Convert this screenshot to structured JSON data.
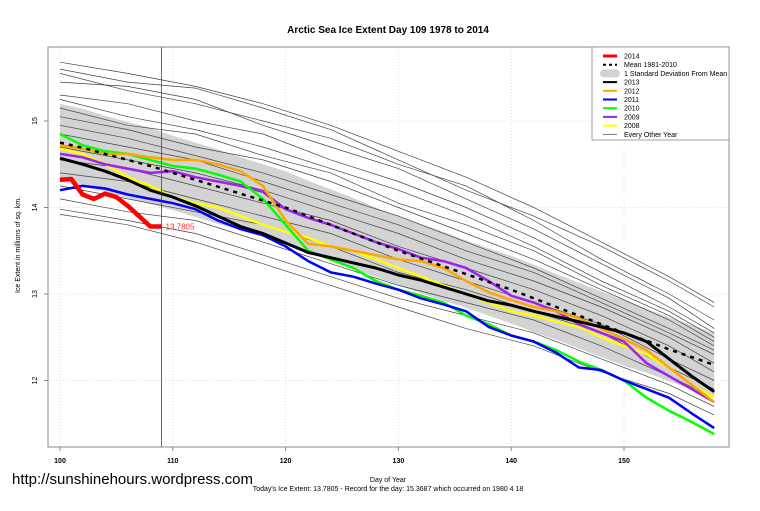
{
  "watermark": "http://sunshinehours.wordpress.com",
  "chart_data": {
    "type": "line",
    "title": "Arctic Sea Ice Extent Day 109 1978 to 2014",
    "xlabel": "Day of Year",
    "ylabel": "Ice Extent in millions of sq. km.",
    "footer": "Today's Ice Extent: 13.7805  - Record for the day: 15.3687 which occurred on 1980 4 18",
    "xlim": [
      99,
      159
    ],
    "ylim": [
      11.22,
      15.85
    ],
    "xticks": [
      100,
      110,
      120,
      130,
      140,
      150
    ],
    "yticks": [
      12,
      13,
      14,
      15
    ],
    "grid": true,
    "legend_position": "top-right",
    "current_day": 109,
    "annotation": {
      "day": 109,
      "value": 13.7805,
      "text": "13.7805",
      "color": "#ff0000"
    },
    "legend": [
      {
        "label": "2014",
        "style": "thick",
        "color": "#ff0000"
      },
      {
        "label": "Mean 1981-2010",
        "style": "dotted",
        "color": "#000000"
      },
      {
        "label": "1 Standard Deviation From Mean",
        "style": "band",
        "color": "#d3d3d3"
      },
      {
        "label": "2013",
        "style": "line",
        "color": "#000000"
      },
      {
        "label": "2012",
        "style": "line",
        "color": "#ffa500"
      },
      {
        "label": "2011",
        "style": "line",
        "color": "#0000ff"
      },
      {
        "label": "2010",
        "style": "line",
        "color": "#00ff00"
      },
      {
        "label": "2009",
        "style": "line",
        "color": "#a020f0"
      },
      {
        "label": "2008",
        "style": "line",
        "color": "#ffff00"
      },
      {
        "label": "Every Other Year",
        "style": "thin",
        "color": "#555555"
      }
    ],
    "days_2": [
      100,
      102,
      104,
      106,
      108,
      110,
      112,
      114,
      116,
      118,
      120,
      122,
      124,
      126,
      128,
      130,
      132,
      134,
      136,
      138,
      140,
      142,
      144,
      146,
      148,
      150,
      152,
      154,
      156,
      158
    ],
    "mean": [
      14.75,
      14.69,
      14.62,
      14.55,
      14.48,
      14.4,
      14.32,
      14.24,
      14.16,
      14.08,
      14.0,
      13.9,
      13.8,
      13.7,
      13.6,
      13.5,
      13.41,
      13.32,
      13.23,
      13.14,
      13.05,
      12.95,
      12.85,
      12.75,
      12.65,
      12.55,
      12.46,
      12.36,
      12.27,
      12.18
    ],
    "sd": [
      0.45,
      0.45,
      0.44,
      0.44,
      0.44,
      0.43,
      0.43,
      0.43,
      0.42,
      0.42,
      0.42,
      0.41,
      0.41,
      0.41,
      0.4,
      0.4,
      0.4,
      0.4,
      0.39,
      0.39,
      0.39,
      0.39,
      0.38,
      0.38,
      0.38,
      0.38,
      0.37,
      0.37,
      0.37,
      0.37
    ],
    "series": [
      {
        "name": "2013",
        "color": "#000000",
        "values": [
          14.57,
          14.5,
          14.42,
          14.32,
          14.2,
          14.12,
          14.02,
          13.9,
          13.78,
          13.7,
          13.59,
          13.48,
          13.42,
          13.36,
          13.3,
          13.22,
          13.16,
          13.08,
          13.0,
          12.92,
          12.87,
          12.8,
          12.74,
          12.68,
          12.62,
          12.55,
          12.45,
          12.25,
          12.05,
          11.87
        ]
      },
      {
        "name": "2012",
        "color": "#ffa500",
        "values": [
          14.72,
          14.68,
          14.62,
          14.62,
          14.58,
          14.55,
          14.55,
          14.5,
          14.42,
          14.25,
          13.85,
          13.58,
          13.55,
          13.5,
          13.45,
          13.4,
          13.38,
          13.3,
          13.15,
          13.02,
          12.93,
          12.85,
          12.8,
          12.72,
          12.6,
          12.48,
          12.35,
          12.15,
          11.95,
          11.75
        ]
      },
      {
        "name": "2011",
        "color": "#0000ff",
        "values": [
          14.2,
          14.25,
          14.22,
          14.15,
          14.1,
          14.05,
          13.98,
          13.85,
          13.75,
          13.68,
          13.55,
          13.38,
          13.25,
          13.2,
          13.12,
          13.05,
          12.95,
          12.88,
          12.8,
          12.62,
          12.52,
          12.45,
          12.32,
          12.15,
          12.12,
          12.0,
          11.9,
          11.8,
          11.62,
          11.45
        ]
      },
      {
        "name": "2010",
        "color": "#00ff00",
        "values": [
          14.85,
          14.72,
          14.65,
          14.62,
          14.55,
          14.48,
          14.45,
          14.38,
          14.3,
          14.1,
          13.8,
          13.5,
          13.4,
          13.3,
          13.15,
          13.05,
          12.98,
          12.9,
          12.75,
          12.65,
          12.52,
          12.45,
          12.35,
          12.22,
          12.12,
          12.0,
          11.8,
          11.65,
          11.52,
          11.38
        ]
      },
      {
        "name": "2009",
        "color": "#a020f0",
        "values": [
          14.62,
          14.58,
          14.5,
          14.45,
          14.4,
          14.42,
          14.35,
          14.3,
          14.25,
          14.18,
          13.98,
          13.88,
          13.8,
          13.7,
          13.6,
          13.52,
          13.42,
          13.38,
          13.3,
          13.15,
          12.98,
          12.9,
          12.8,
          12.65,
          12.55,
          12.45,
          12.2,
          12.05,
          11.9,
          11.75
        ]
      },
      {
        "name": "2008",
        "color": "#ffff00",
        "values": [
          14.68,
          14.62,
          14.5,
          14.35,
          14.25,
          14.12,
          14.05,
          14.0,
          13.9,
          13.8,
          13.72,
          13.65,
          13.55,
          13.5,
          13.4,
          13.3,
          13.2,
          13.1,
          13.0,
          12.9,
          12.8,
          12.75,
          12.68,
          12.62,
          12.5,
          12.4,
          12.3,
          12.15,
          11.95,
          11.8
        ]
      }
    ],
    "current_year": {
      "name": "2014",
      "color": "#ff0000",
      "days": [
        100,
        101,
        102,
        103,
        104,
        105,
        106,
        107,
        108,
        109
      ],
      "values": [
        14.32,
        14.33,
        14.15,
        14.1,
        14.16,
        14.12,
        14.02,
        13.9,
        13.78,
        13.7805
      ]
    },
    "other_years_days": [
      100,
      106,
      112,
      118,
      124,
      130,
      136,
      142,
      148,
      154,
      158
    ],
    "other_years": [
      [
        15.68,
        15.55,
        15.4,
        15.2,
        14.95,
        14.65,
        14.35,
        14.0,
        13.6,
        13.2,
        12.9
      ],
      [
        15.6,
        15.45,
        15.38,
        15.15,
        14.9,
        14.55,
        14.2,
        13.9,
        13.55,
        13.15,
        12.85
      ],
      [
        15.55,
        15.35,
        15.2,
        15.0,
        14.8,
        14.5,
        14.25,
        13.85,
        13.4,
        13.0,
        12.7
      ],
      [
        15.45,
        15.4,
        15.25,
        14.95,
        14.7,
        14.45,
        14.1,
        13.75,
        13.35,
        12.95,
        12.6
      ],
      [
        15.3,
        15.2,
        15.0,
        14.85,
        14.55,
        14.3,
        14.0,
        13.65,
        13.25,
        12.85,
        12.55
      ],
      [
        15.25,
        15.05,
        14.9,
        14.7,
        14.45,
        14.2,
        13.9,
        13.55,
        13.15,
        12.8,
        12.5
      ],
      [
        15.15,
        14.95,
        14.85,
        14.6,
        14.4,
        14.05,
        13.8,
        13.5,
        13.1,
        12.75,
        12.45
      ],
      [
        15.05,
        14.9,
        14.7,
        14.55,
        14.3,
        14.0,
        13.7,
        13.4,
        13.05,
        12.7,
        12.4
      ],
      [
        14.95,
        14.8,
        14.6,
        14.4,
        14.15,
        13.9,
        13.6,
        13.3,
        12.95,
        12.6,
        12.35
      ],
      [
        14.85,
        14.7,
        14.55,
        14.3,
        14.05,
        13.8,
        13.5,
        13.25,
        12.9,
        12.55,
        12.3
      ],
      [
        14.7,
        14.55,
        14.4,
        14.2,
        13.95,
        13.7,
        13.4,
        13.15,
        12.85,
        12.5,
        12.2
      ],
      [
        14.55,
        14.45,
        14.25,
        14.05,
        13.85,
        13.55,
        13.3,
        13.05,
        12.75,
        12.4,
        12.1
      ],
      [
        14.4,
        14.3,
        14.1,
        13.9,
        13.7,
        13.4,
        13.15,
        12.9,
        12.65,
        12.25,
        12.0
      ],
      [
        14.25,
        14.1,
        13.95,
        13.8,
        13.55,
        13.25,
        13.05,
        12.8,
        12.55,
        12.15,
        11.9
      ],
      [
        14.1,
        13.95,
        13.85,
        13.6,
        13.35,
        13.1,
        12.9,
        12.7,
        12.4,
        12.05,
        11.8
      ],
      [
        13.98,
        13.85,
        13.7,
        13.45,
        13.2,
        12.95,
        12.75,
        12.55,
        12.25,
        11.95,
        11.7
      ],
      [
        13.92,
        13.8,
        13.6,
        13.35,
        13.1,
        12.85,
        12.6,
        12.4,
        12.1,
        11.85,
        11.6
      ]
    ]
  }
}
